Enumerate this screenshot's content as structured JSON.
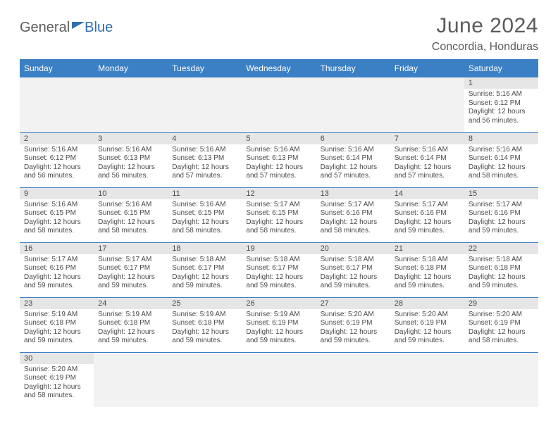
{
  "brand": {
    "part1": "General",
    "part2": "Blue"
  },
  "title": "June 2024",
  "location": "Concordia, Honduras",
  "colors": {
    "header_bg": "#3b7fc4",
    "header_text": "#ffffff",
    "daynum_bg": "#e6e6e6",
    "blank_bg": "#f2f2f2",
    "text": "#4a4a4a",
    "rule": "#3b7fc4"
  },
  "daynames": [
    "Sunday",
    "Monday",
    "Tuesday",
    "Wednesday",
    "Thursday",
    "Friday",
    "Saturday"
  ],
  "weeks": [
    [
      null,
      null,
      null,
      null,
      null,
      null,
      {
        "n": "1",
        "sr": "Sunrise: 5:16 AM",
        "ss": "Sunset: 6:12 PM",
        "dl1": "Daylight: 12 hours",
        "dl2": "and 56 minutes."
      }
    ],
    [
      {
        "n": "2",
        "sr": "Sunrise: 5:16 AM",
        "ss": "Sunset: 6:12 PM",
        "dl1": "Daylight: 12 hours",
        "dl2": "and 56 minutes."
      },
      {
        "n": "3",
        "sr": "Sunrise: 5:16 AM",
        "ss": "Sunset: 6:13 PM",
        "dl1": "Daylight: 12 hours",
        "dl2": "and 56 minutes."
      },
      {
        "n": "4",
        "sr": "Sunrise: 5:16 AM",
        "ss": "Sunset: 6:13 PM",
        "dl1": "Daylight: 12 hours",
        "dl2": "and 57 minutes."
      },
      {
        "n": "5",
        "sr": "Sunrise: 5:16 AM",
        "ss": "Sunset: 6:13 PM",
        "dl1": "Daylight: 12 hours",
        "dl2": "and 57 minutes."
      },
      {
        "n": "6",
        "sr": "Sunrise: 5:16 AM",
        "ss": "Sunset: 6:14 PM",
        "dl1": "Daylight: 12 hours",
        "dl2": "and 57 minutes."
      },
      {
        "n": "7",
        "sr": "Sunrise: 5:16 AM",
        "ss": "Sunset: 6:14 PM",
        "dl1": "Daylight: 12 hours",
        "dl2": "and 57 minutes."
      },
      {
        "n": "8",
        "sr": "Sunrise: 5:16 AM",
        "ss": "Sunset: 6:14 PM",
        "dl1": "Daylight: 12 hours",
        "dl2": "and 58 minutes."
      }
    ],
    [
      {
        "n": "9",
        "sr": "Sunrise: 5:16 AM",
        "ss": "Sunset: 6:15 PM",
        "dl1": "Daylight: 12 hours",
        "dl2": "and 58 minutes."
      },
      {
        "n": "10",
        "sr": "Sunrise: 5:16 AM",
        "ss": "Sunset: 6:15 PM",
        "dl1": "Daylight: 12 hours",
        "dl2": "and 58 minutes."
      },
      {
        "n": "11",
        "sr": "Sunrise: 5:16 AM",
        "ss": "Sunset: 6:15 PM",
        "dl1": "Daylight: 12 hours",
        "dl2": "and 58 minutes."
      },
      {
        "n": "12",
        "sr": "Sunrise: 5:17 AM",
        "ss": "Sunset: 6:15 PM",
        "dl1": "Daylight: 12 hours",
        "dl2": "and 58 minutes."
      },
      {
        "n": "13",
        "sr": "Sunrise: 5:17 AM",
        "ss": "Sunset: 6:16 PM",
        "dl1": "Daylight: 12 hours",
        "dl2": "and 58 minutes."
      },
      {
        "n": "14",
        "sr": "Sunrise: 5:17 AM",
        "ss": "Sunset: 6:16 PM",
        "dl1": "Daylight: 12 hours",
        "dl2": "and 59 minutes."
      },
      {
        "n": "15",
        "sr": "Sunrise: 5:17 AM",
        "ss": "Sunset: 6:16 PM",
        "dl1": "Daylight: 12 hours",
        "dl2": "and 59 minutes."
      }
    ],
    [
      {
        "n": "16",
        "sr": "Sunrise: 5:17 AM",
        "ss": "Sunset: 6:16 PM",
        "dl1": "Daylight: 12 hours",
        "dl2": "and 59 minutes."
      },
      {
        "n": "17",
        "sr": "Sunrise: 5:17 AM",
        "ss": "Sunset: 6:17 PM",
        "dl1": "Daylight: 12 hours",
        "dl2": "and 59 minutes."
      },
      {
        "n": "18",
        "sr": "Sunrise: 5:18 AM",
        "ss": "Sunset: 6:17 PM",
        "dl1": "Daylight: 12 hours",
        "dl2": "and 59 minutes."
      },
      {
        "n": "19",
        "sr": "Sunrise: 5:18 AM",
        "ss": "Sunset: 6:17 PM",
        "dl1": "Daylight: 12 hours",
        "dl2": "and 59 minutes."
      },
      {
        "n": "20",
        "sr": "Sunrise: 5:18 AM",
        "ss": "Sunset: 6:17 PM",
        "dl1": "Daylight: 12 hours",
        "dl2": "and 59 minutes."
      },
      {
        "n": "21",
        "sr": "Sunrise: 5:18 AM",
        "ss": "Sunset: 6:18 PM",
        "dl1": "Daylight: 12 hours",
        "dl2": "and 59 minutes."
      },
      {
        "n": "22",
        "sr": "Sunrise: 5:18 AM",
        "ss": "Sunset: 6:18 PM",
        "dl1": "Daylight: 12 hours",
        "dl2": "and 59 minutes."
      }
    ],
    [
      {
        "n": "23",
        "sr": "Sunrise: 5:19 AM",
        "ss": "Sunset: 6:18 PM",
        "dl1": "Daylight: 12 hours",
        "dl2": "and 59 minutes."
      },
      {
        "n": "24",
        "sr": "Sunrise: 5:19 AM",
        "ss": "Sunset: 6:18 PM",
        "dl1": "Daylight: 12 hours",
        "dl2": "and 59 minutes."
      },
      {
        "n": "25",
        "sr": "Sunrise: 5:19 AM",
        "ss": "Sunset: 6:18 PM",
        "dl1": "Daylight: 12 hours",
        "dl2": "and 59 minutes."
      },
      {
        "n": "26",
        "sr": "Sunrise: 5:19 AM",
        "ss": "Sunset: 6:19 PM",
        "dl1": "Daylight: 12 hours",
        "dl2": "and 59 minutes."
      },
      {
        "n": "27",
        "sr": "Sunrise: 5:20 AM",
        "ss": "Sunset: 6:19 PM",
        "dl1": "Daylight: 12 hours",
        "dl2": "and 59 minutes."
      },
      {
        "n": "28",
        "sr": "Sunrise: 5:20 AM",
        "ss": "Sunset: 6:19 PM",
        "dl1": "Daylight: 12 hours",
        "dl2": "and 59 minutes."
      },
      {
        "n": "29",
        "sr": "Sunrise: 5:20 AM",
        "ss": "Sunset: 6:19 PM",
        "dl1": "Daylight: 12 hours",
        "dl2": "and 58 minutes."
      }
    ],
    [
      {
        "n": "30",
        "sr": "Sunrise: 5:20 AM",
        "ss": "Sunset: 6:19 PM",
        "dl1": "Daylight: 12 hours",
        "dl2": "and 58 minutes."
      },
      null,
      null,
      null,
      null,
      null,
      null
    ]
  ]
}
